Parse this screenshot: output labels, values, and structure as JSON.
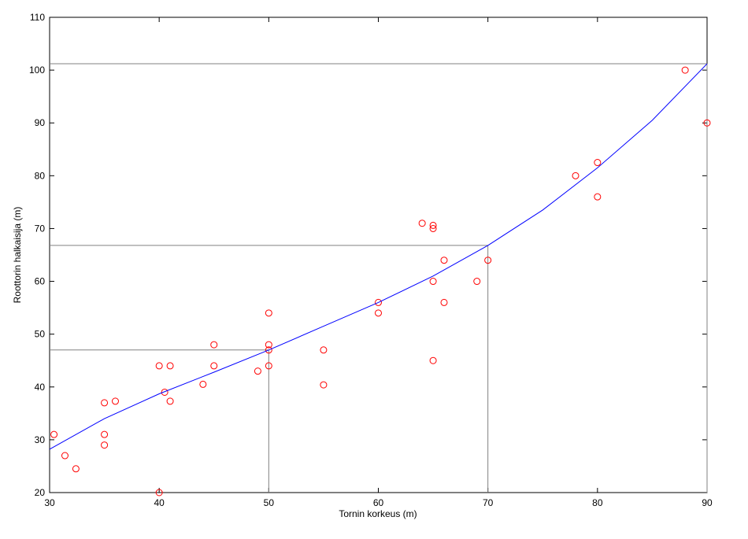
{
  "chart_data": {
    "type": "scatter",
    "xlabel": "Tornin korkeus (m)",
    "ylabel": "Roottorin halkaisija (m)",
    "xlim": [
      30,
      90
    ],
    "ylim": [
      20,
      110
    ],
    "xticks": [
      30,
      40,
      50,
      60,
      70,
      80,
      90
    ],
    "yticks": [
      20,
      30,
      40,
      50,
      60,
      70,
      80,
      90,
      100,
      110
    ],
    "series": [
      {
        "type": "scatter",
        "color": "#ff0000",
        "x": [
          30.4,
          31.4,
          32.4,
          35,
          35,
          35,
          36,
          40,
          40,
          40.5,
          41,
          41,
          44,
          45,
          45,
          49,
          50,
          50,
          50,
          50,
          55,
          55,
          60,
          60,
          64,
          65,
          65,
          65,
          65,
          66,
          66,
          69,
          70,
          78,
          80,
          80,
          88,
          90
        ],
        "values": [
          31,
          27,
          24.5,
          37,
          31,
          29,
          37.3,
          44,
          20,
          39,
          44,
          37.3,
          40.5,
          48,
          44,
          43,
          54,
          48,
          47,
          44,
          47,
          40.4,
          56,
          54,
          71,
          70.6,
          70,
          60,
          45,
          64,
          56,
          60,
          64,
          80,
          82.5,
          76,
          100,
          90
        ]
      },
      {
        "type": "line",
        "color": "#0000ff",
        "x": [
          30,
          35,
          40,
          45,
          50,
          55,
          60,
          65,
          70,
          75,
          80,
          85,
          90
        ],
        "values": [
          28.2,
          34,
          38.7,
          42.8,
          47,
          51.5,
          56,
          61,
          66.8,
          73.5,
          81.5,
          90.5,
          101.2
        ]
      }
    ],
    "guides": {
      "color": "#808080",
      "x": [
        50,
        70,
        90
      ],
      "values": [
        47,
        66.8,
        101.2
      ]
    }
  }
}
